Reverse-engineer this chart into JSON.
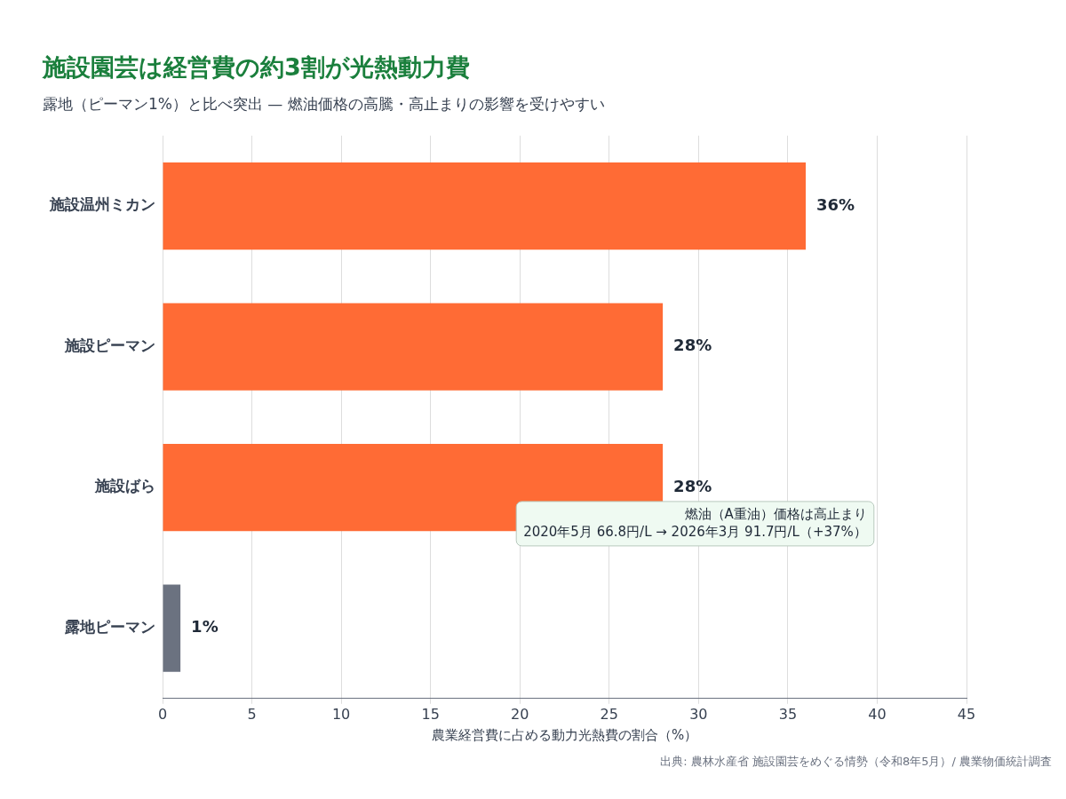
{
  "chart_data": {
    "type": "bar",
    "orientation": "horizontal",
    "title": "施設園芸は経営費の約3割が光熱動力費",
    "subtitle": "露地（ピーマン1%）と比べ突出 — 燃油価格の高騰・高止まりの影響を受けやすい",
    "categories": [
      "施設温州ミカン",
      "施設ピーマン",
      "施設ばら",
      "露地ピーマン"
    ],
    "values": [
      36,
      28,
      28,
      1
    ],
    "colors": [
      "#ff6b35",
      "#ff6b35",
      "#ff6b35",
      "#6b7280"
    ],
    "value_labels": [
      "36%",
      "28%",
      "28%",
      "1%"
    ],
    "xlim": [
      0,
      45
    ],
    "xticks": [
      0,
      5,
      10,
      15,
      20,
      25,
      30,
      35,
      40,
      45
    ],
    "xlabel": "農業経営費に占める動力光熱費の割合（%）",
    "grid": "x",
    "legend": false,
    "annotations": [
      "燃油（A重油）価格は高止まり",
      "2020年5月 66.8円/L → 2026年3月 91.7円/L（+37%）",
      "出典: 農林水産省 施設園芸をめぐる情勢（令和8年5月）/ 農業物価統計調査"
    ]
  }
}
